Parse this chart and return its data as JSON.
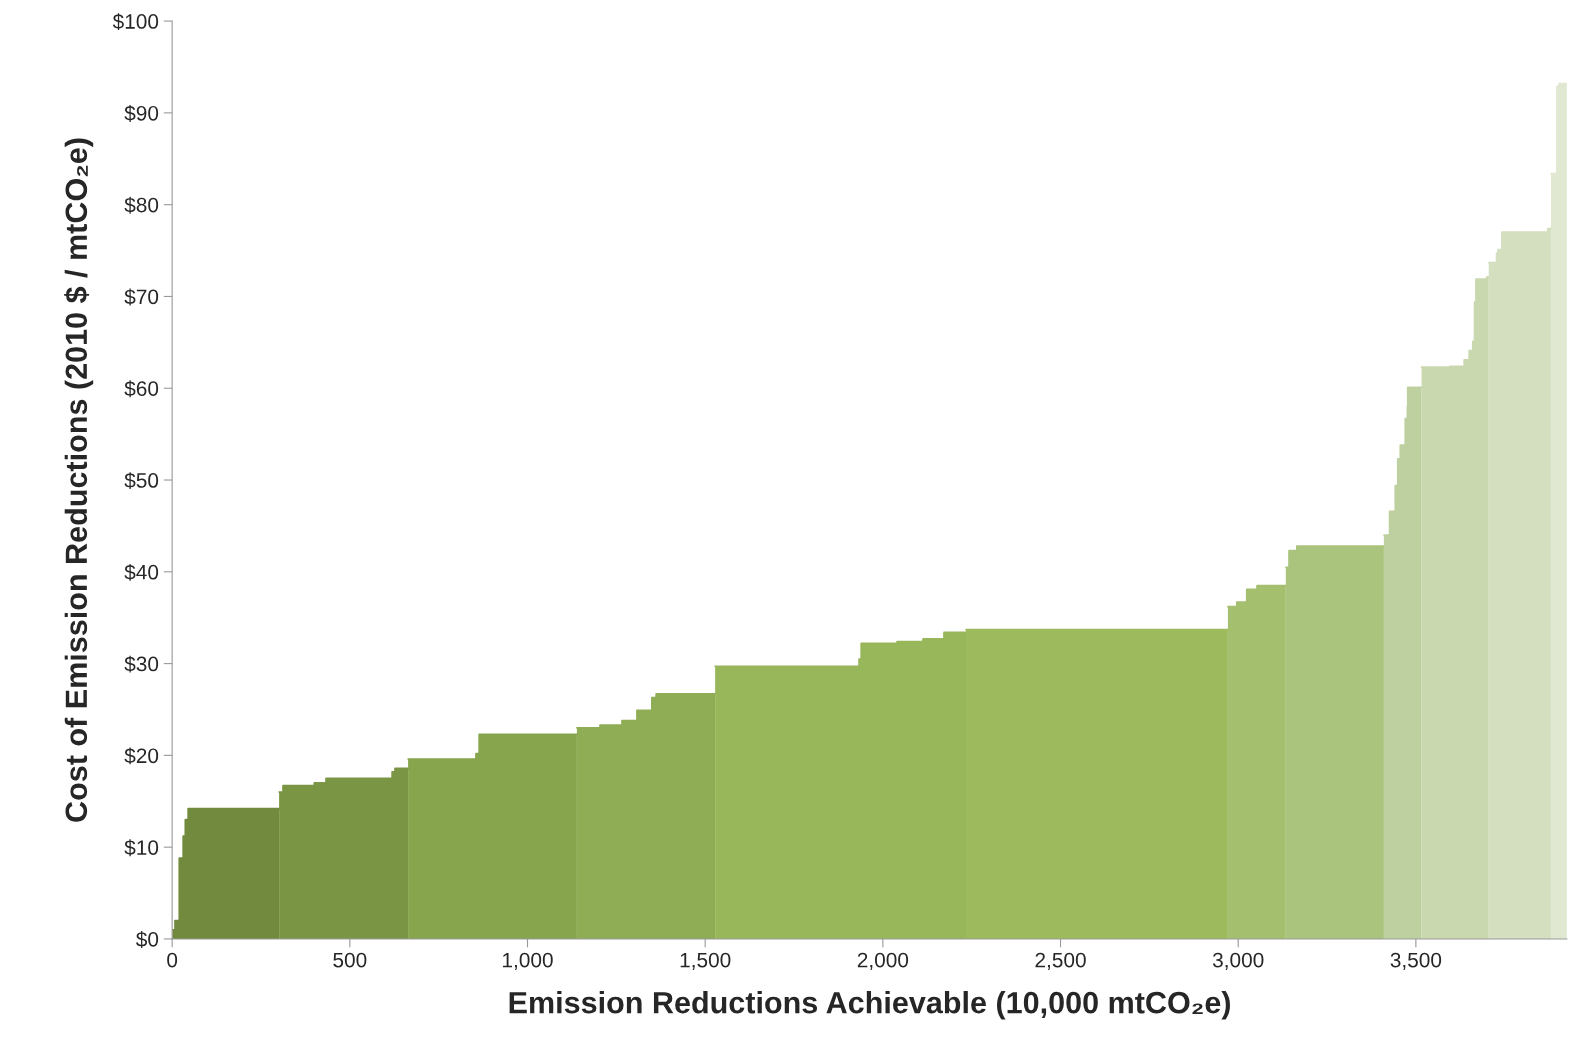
{
  "chart_data": {
    "type": "area",
    "xlabel": "Emission Reductions Achievable (10,000 mtCO₂e)",
    "ylabel": "Cost of Emission Reductions (2010 $ / mtCO₂e)",
    "series": [
      {
        "color": "#728a3e",
        "x": [
          0,
          8,
          8,
          20,
          20,
          31,
          31,
          37,
          37,
          45,
          45,
          301
        ],
        "values": [
          1.0,
          1.0,
          2.0,
          2.0,
          8.8,
          8.8,
          11.2,
          11.2,
          13.0,
          13.0,
          14.2,
          14.2
        ]
      },
      {
        "color": "#7a9644",
        "x": [
          301,
          312,
          312,
          400,
          400,
          433,
          433,
          619,
          619,
          627,
          627,
          664
        ],
        "values": [
          16.0,
          16.0,
          16.7,
          16.7,
          17.0,
          17.0,
          17.5,
          17.5,
          18.2,
          18.2,
          18.6,
          18.6
        ]
      },
      {
        "color": "#86a54c",
        "x": [
          664,
          855,
          855,
          864,
          864,
          1139
        ],
        "values": [
          19.6,
          19.6,
          20.2,
          20.2,
          22.3,
          22.3
        ]
      },
      {
        "color": "#8fad54",
        "x": [
          1139,
          1204,
          1204,
          1266,
          1266,
          1308,
          1308,
          1350,
          1350,
          1362,
          1362,
          1528
        ],
        "values": [
          23.0,
          23.0,
          23.3,
          23.3,
          23.8,
          23.8,
          24.9,
          24.9,
          26.3,
          26.3,
          26.7,
          26.7
        ]
      },
      {
        "color": "#98b65a",
        "x": [
          1528,
          1933,
          1933,
          1939,
          1939,
          2040,
          2040,
          2113,
          2113,
          2172,
          2172,
          2234
        ],
        "values": [
          29.7,
          29.7,
          30.5,
          30.5,
          32.2,
          32.2,
          32.4,
          32.4,
          32.7,
          32.7,
          33.4,
          33.4
        ]
      },
      {
        "color": "#9dbb5c",
        "x": [
          2234,
          2971
        ],
        "values": [
          33.7,
          33.7
        ]
      },
      {
        "color": "#a4bf6e",
        "x": [
          2971,
          2996,
          2996,
          3024,
          3024,
          3053,
          3053,
          3134
        ],
        "values": [
          36.2,
          36.2,
          36.7,
          36.7,
          38.1,
          38.1,
          38.5,
          38.5
        ]
      },
      {
        "color": "#aac47e",
        "x": [
          3134,
          3143,
          3143,
          3165,
          3165,
          3410
        ],
        "values": [
          40.5,
          40.5,
          42.3,
          42.3,
          42.8,
          42.8
        ]
      },
      {
        "color": "#bfd0a0",
        "x": [
          3410,
          3426,
          3426,
          3442,
          3442,
          3449,
          3449,
          3456,
          3456,
          3470,
          3470,
          3476,
          3476,
          3477,
          3477,
          3516
        ],
        "values": [
          44.0,
          44.0,
          46.6,
          46.6,
          49.4,
          49.4,
          52.3,
          52.3,
          53.8,
          53.8,
          56.7,
          56.7,
          58.0,
          58.0,
          60.1,
          60.1
        ]
      },
      {
        "color": "#c9d8ae",
        "x": [
          3516,
          3595,
          3595,
          3636,
          3636,
          3650,
          3650,
          3660,
          3660,
          3665,
          3665,
          3669,
          3669,
          3699,
          3699,
          3705
        ],
        "values": [
          62.3,
          62.3,
          62.4,
          62.4,
          63.1,
          63.1,
          64.1,
          64.1,
          65.1,
          65.1,
          69.4,
          69.4,
          71.9,
          71.9,
          72.1,
          72.1
        ]
      },
      {
        "color": "#d3dfbf",
        "x": [
          3705,
          3727,
          3727,
          3731,
          3731,
          3742,
          3742,
          3871,
          3871,
          3880
        ],
        "values": [
          73.7,
          73.7,
          74.7,
          74.7,
          75.1,
          75.1,
          77.0,
          77.0,
          77.4,
          77.4
        ]
      },
      {
        "color": "#e0e8d2",
        "x": [
          3880,
          3897,
          3897,
          3903,
          3903,
          3925
        ],
        "values": [
          83.4,
          83.4,
          92.9,
          92.9,
          93.2,
          93.2
        ]
      }
    ],
    "xlim": [
      0,
      3925
    ],
    "ylim": [
      0,
      100
    ],
    "xticks": [
      0,
      500,
      {
        "value": 1000,
        "label": "1,000"
      },
      {
        "value": 1500,
        "label": "1,500"
      },
      {
        "value": 2000,
        "label": "2,000"
      },
      {
        "value": 2500,
        "label": "2,500"
      },
      {
        "value": 3000,
        "label": "3,000"
      },
      {
        "value": 3500,
        "label": "3,500"
      }
    ],
    "yticks": [
      {
        "value": 0,
        "label": "$0"
      },
      {
        "value": 10,
        "label": "$10"
      },
      {
        "value": 20,
        "label": "$20"
      },
      {
        "value": 30,
        "label": "$30"
      },
      {
        "value": 40,
        "label": "$40"
      },
      {
        "value": 50,
        "label": "$50"
      },
      {
        "value": 60,
        "label": "$60"
      },
      {
        "value": 70,
        "label": "$70"
      },
      {
        "value": 80,
        "label": "$80"
      },
      {
        "value": 90,
        "label": "$90"
      },
      {
        "value": 100,
        "label": "$100"
      }
    ],
    "grid": false
  }
}
